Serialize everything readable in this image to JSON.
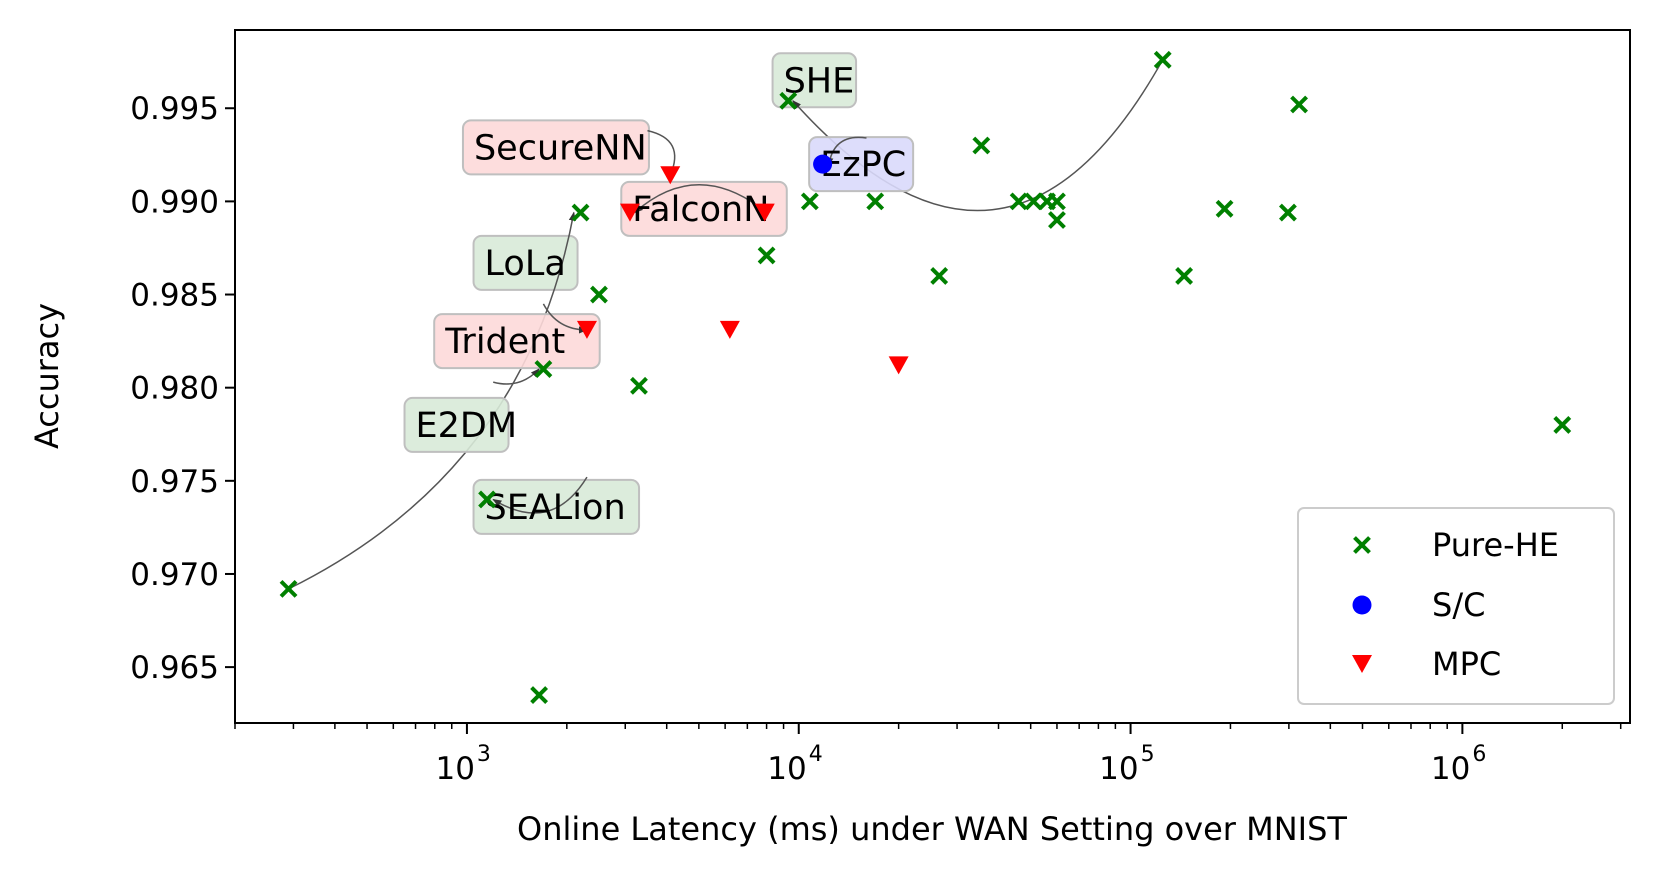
{
  "chart_data": {
    "type": "scatter",
    "xlabel": "Online Latency (ms) under WAN Setting over MNIST",
    "ylabel": "Accuracy",
    "xscale": "log",
    "xlim": [
      200,
      3200000
    ],
    "ylim": [
      0.962,
      0.9992
    ],
    "grid": false,
    "legend_position": "lower-right",
    "x_ticks": [
      {
        "value": 1000,
        "base": "10",
        "exp": "3"
      },
      {
        "value": 10000,
        "base": "10",
        "exp": "4"
      },
      {
        "value": 100000,
        "base": "10",
        "exp": "5"
      },
      {
        "value": 1000000,
        "base": "10",
        "exp": "6"
      }
    ],
    "y_ticks": [
      {
        "value": 0.965,
        "label": "0.965"
      },
      {
        "value": 0.97,
        "label": "0.970"
      },
      {
        "value": 0.975,
        "label": "0.975"
      },
      {
        "value": 0.98,
        "label": "0.980"
      },
      {
        "value": 0.985,
        "label": "0.985"
      },
      {
        "value": 0.99,
        "label": "0.990"
      },
      {
        "value": 0.995,
        "label": "0.995"
      }
    ],
    "series": [
      {
        "name": "Pure-HE",
        "marker": "x",
        "color": "#008000",
        "points": [
          [
            290,
            0.9692
          ],
          [
            1150,
            0.974
          ],
          [
            1650,
            0.9635
          ],
          [
            1700,
            0.981
          ],
          [
            2200,
            0.9894
          ],
          [
            2500,
            0.985
          ],
          [
            3300,
            0.9801
          ],
          [
            8000,
            0.9871
          ],
          [
            9300,
            0.9954
          ],
          [
            10800,
            0.99
          ],
          [
            17000,
            0.99
          ],
          [
            26500,
            0.986
          ],
          [
            35500,
            0.993
          ],
          [
            46000,
            0.99
          ],
          [
            51000,
            0.99
          ],
          [
            56000,
            0.99
          ],
          [
            60000,
            0.99
          ],
          [
            60000,
            0.989
          ],
          [
            125000,
            0.9976
          ],
          [
            145000,
            0.986
          ],
          [
            192000,
            0.9896
          ],
          [
            298000,
            0.9894
          ],
          [
            322000,
            0.9952
          ],
          [
            2000000,
            0.978
          ]
        ]
      },
      {
        "name": "S/C",
        "marker": "o",
        "color": "#0000ff",
        "points": [
          [
            11800,
            0.992
          ]
        ]
      },
      {
        "name": "MPC",
        "marker": "v",
        "color": "#ff0000",
        "points": [
          [
            2300,
            0.9831
          ],
          [
            3100,
            0.9894
          ],
          [
            4100,
            0.9914
          ],
          [
            6200,
            0.9831
          ],
          [
            7900,
            0.9894
          ],
          [
            20000,
            0.9812
          ]
        ]
      }
    ],
    "annotations": [
      {
        "text": "SHE",
        "box_color": "#d8ead8",
        "box_x": 9000,
        "box_y": 0.9965,
        "arrow_from": [
          125000,
          0.9976
        ],
        "arrow_to": [
          9600,
          0.9954
        ],
        "curve": -0.7
      },
      {
        "text": "SecureNN",
        "box_color": "#fdd9d9",
        "box_x": 1050,
        "box_y": 0.9929,
        "arrow_from": [
          3500,
          0.9938
        ],
        "arrow_to": [
          4100,
          0.9914
        ],
        "curve": -0.6
      },
      {
        "text": "EzPC",
        "box_color": "#d9d9fb",
        "box_x": 11600,
        "box_y": 0.992,
        "arrow_from": [
          16000,
          0.9934
        ],
        "arrow_to": [
          12300,
          0.9919
        ],
        "curve": 0.5
      },
      {
        "text": "FalconN",
        "box_color": "#fdd9d9",
        "box_x": 3150,
        "box_y": 0.9896,
        "arrow_from": [
          7600,
          0.9897
        ],
        "arrow_to": [
          3200,
          0.9894
        ],
        "curve": 0.4
      },
      {
        "text": "LoLa",
        "box_color": "#d8ead8",
        "box_x": 1130,
        "box_y": 0.9867,
        "arrow_from": [
          290,
          0.9692
        ],
        "arrow_to": [
          2100,
          0.9894
        ],
        "curve": 0.25
      },
      {
        "text": "Trident",
        "box_color": "#fdd9d9",
        "box_x": 860,
        "box_y": 0.9825,
        "arrow_from": [
          1700,
          0.9845
        ],
        "arrow_to": [
          2300,
          0.9831
        ],
        "curve": 0.3
      },
      {
        "text": "E2DM",
        "box_color": "#d8ead8",
        "box_x": 700,
        "box_y": 0.978,
        "arrow_from": [
          1200,
          0.9803
        ],
        "arrow_to": [
          1650,
          0.981
        ],
        "curve": 0.3
      },
      {
        "text": "SEALion",
        "box_color": "#d8ead8",
        "box_x": 1130,
        "box_y": 0.9736,
        "arrow_from": [
          2300,
          0.9752
        ],
        "arrow_to": [
          1200,
          0.974
        ],
        "curve": -0.5
      }
    ]
  }
}
